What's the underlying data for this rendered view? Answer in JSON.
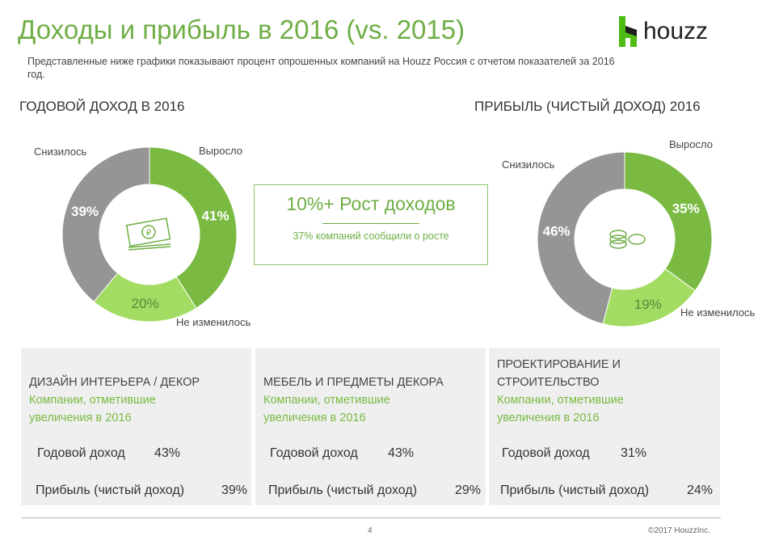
{
  "title": "Доходы и прибыль в 2016 (vs. 2015)",
  "subtitle": "Представленные ниже графики показывают процент опрошенных компаний на Houzz Россия с отчетом показателей за 2016 год.",
  "logo": {
    "text": "houzz",
    "color": "#4dbc15"
  },
  "colors": {
    "grew": "#7aba42",
    "unchanged": "#a2dc62",
    "decreased": "#959595",
    "accent": "#6fae45"
  },
  "chart_data": [
    {
      "type": "pie",
      "title": "ГОДОВОЙ ДОХОД  В 2016",
      "center_icon": "ruble-banknote-icon",
      "categories": [
        "Выросло",
        "Не изменилось",
        "Снизилось"
      ],
      "values": [
        41,
        20,
        39
      ],
      "labels": [
        "41%",
        "20%",
        "39%"
      ]
    },
    {
      "type": "pie",
      "title": "ПРИБЫЛЬ (ЧИСТЫЙ ДОХОД) 2016",
      "center_icon": "coins-icon",
      "categories": [
        "Выросло",
        "Не изменилось",
        "Снизилось"
      ],
      "values": [
        35,
        19,
        46
      ],
      "labels": [
        "35%",
        "19%",
        "46%"
      ]
    }
  ],
  "kpi": {
    "headline": "10%+ Рост доходов",
    "note": "37% компаний сообщили о росте"
  },
  "panels": [
    {
      "title": "ДИЗАЙН ИНТЕРЬЕРА / ДЕКОР",
      "subtitle": "Компании, отметившие увеличения в 2016",
      "rows": [
        {
          "label": "Годовой доход",
          "value": "43%"
        },
        {
          "label": "Прибыль (чистый доход)",
          "value": "39%"
        }
      ]
    },
    {
      "title": "МЕБЕЛЬ И ПРЕДМЕТЫ ДЕКОРА",
      "subtitle": "Компании, отметившие увеличения в 2016",
      "rows": [
        {
          "label": "Годовой доход",
          "value": "43%"
        },
        {
          "label": "Прибыль (чистый доход)",
          "value": "29%"
        }
      ]
    },
    {
      "title": "ПРОЕКТИРОВАНИЕ И СТРОИТЕЛЬСТВО",
      "subtitle": "Компании, отметившие увеличения в 2016",
      "rows": [
        {
          "label": "Годовой доход",
          "value": "31%"
        },
        {
          "label": "Прибыль (чистый доход)",
          "value": "24%"
        }
      ]
    }
  ],
  "footer": {
    "page": "4",
    "copyright": "©2017 HouzzInc."
  }
}
